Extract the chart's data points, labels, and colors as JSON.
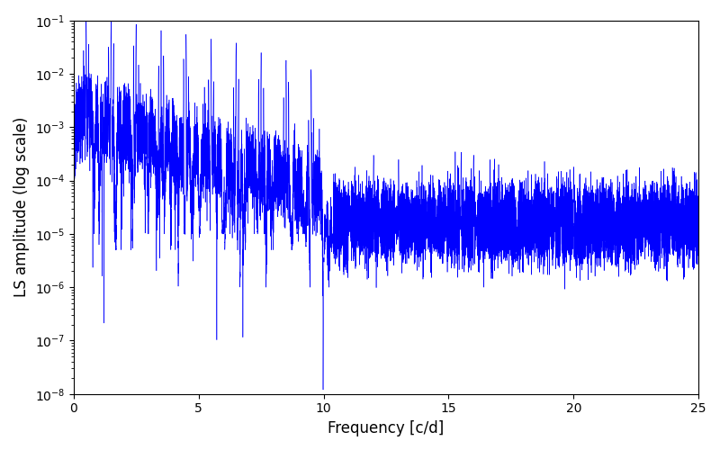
{
  "line_color": "#0000FF",
  "xlabel": "Frequency [c/d]",
  "ylabel": "LS amplitude (log scale)",
  "xlim": [
    0,
    25
  ],
  "ylim_log": [
    -8,
    -1
  ],
  "background_color": "#ffffff",
  "figsize": [
    8.0,
    5.0
  ],
  "dpi": 100
}
